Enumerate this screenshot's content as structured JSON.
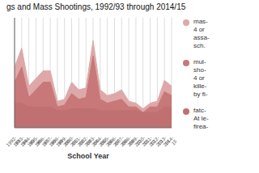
{
  "chart_data": {
    "type": "area",
    "title": "gs and Mass Shootings, 1992/93 through 2014/15",
    "xlabel": "School Year",
    "categories": [
      "1992-\n93",
      "1993-\n94",
      "1994-\n95",
      "1995-\n96",
      "1996-\n97",
      "1997-\n98",
      "1998-\n99",
      "1999-\n00",
      "2000-\n01",
      "2001-\n02",
      "2002-\n03",
      "2003-\n04",
      "2004-\n05",
      "2005-\n06",
      "2006-\n07",
      "2007-\n08",
      "2008-\n09",
      "2009-\n10",
      "2010-\n11",
      "2011-\n12",
      "2012-\n13",
      "2013-\n14",
      "2014-\n15"
    ],
    "series": [
      {
        "name": "mas-\n4 or\nassa-\nsch.",
        "color": "#dea8a8",
        "values": [
          32,
          42,
          22,
          26,
          30,
          30,
          14,
          15,
          24,
          20,
          21,
          46,
          20,
          17,
          18,
          20,
          14,
          13,
          10,
          13,
          14,
          25,
          22
        ]
      },
      {
        "name": "mul-\nsho-\n4 or\nkille-\nby fi-",
        "color": "#c87878",
        "values": [
          24,
          32,
          16,
          20,
          24,
          24,
          11,
          12,
          18,
          15,
          16,
          38,
          15,
          13,
          14,
          15,
          11,
          11,
          8,
          11,
          11,
          19,
          17
        ]
      },
      {
        "name": "fatc-\nAt le-\nfirea-",
        "color": "#c07070",
        "values": [
          13,
          13,
          11,
          11,
          11,
          11,
          9,
          9,
          10,
          10,
          10,
          10,
          9,
          9,
          9,
          9,
          9,
          9,
          8,
          8,
          8,
          11,
          11
        ]
      }
    ],
    "ylim": [
      0,
      58
    ],
    "yticks": [],
    "grid": true,
    "legend": "right",
    "tick_labels": "x"
  }
}
